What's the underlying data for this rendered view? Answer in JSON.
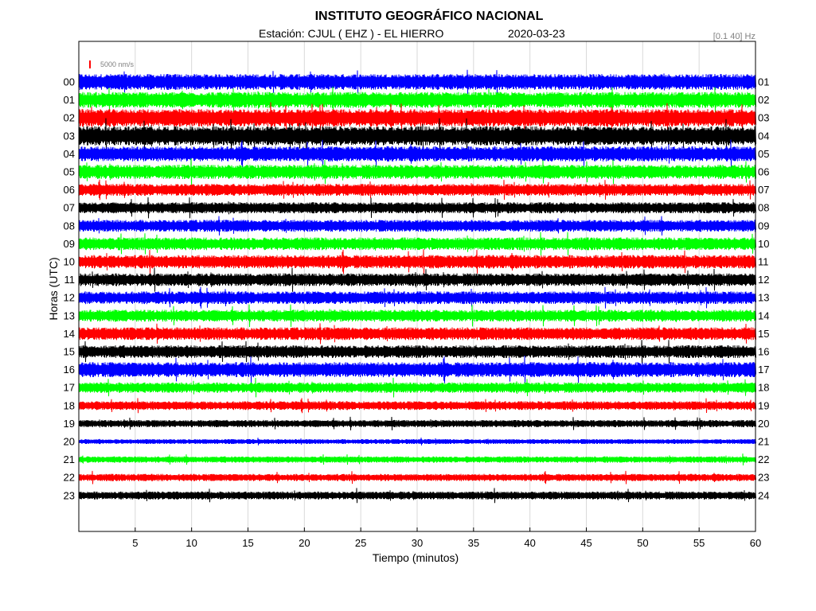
{
  "header": {
    "title": "INSTITUTO GEOGRÁFICO NACIONAL",
    "station": "Estación:  CJUL ( EHZ ) - EL HIERRO",
    "date": "2020-03-23",
    "filter": "[0.1 40] Hz"
  },
  "chart_data": {
    "type": "line",
    "title": "INSTITUTO GEOGRÁFICO NACIONAL",
    "xlabel": "Tiempo (minutos)",
    "ylabel": "Horas (UTC)",
    "xlim": [
      0,
      60
    ],
    "x_ticks": [
      5,
      10,
      15,
      20,
      25,
      30,
      35,
      40,
      45,
      50,
      55,
      60
    ],
    "grid": true,
    "scale_label": "5000 nm/s",
    "scale_color": "#ff0000",
    "colors": [
      "#0000ff",
      "#00ff00",
      "#ff0000",
      "#000000"
    ],
    "left_labels": [
      "00",
      "01",
      "02",
      "03",
      "04",
      "05",
      "06",
      "07",
      "08",
      "09",
      "10",
      "11",
      "12",
      "13",
      "14",
      "15",
      "16",
      "17",
      "18",
      "19",
      "20",
      "21",
      "22",
      "23"
    ],
    "right_labels": [
      "01",
      "02",
      "03",
      "04",
      "05",
      "06",
      "07",
      "08",
      "09",
      "10",
      "11",
      "12",
      "13",
      "14",
      "15",
      "16",
      "17",
      "18",
      "19",
      "20",
      "21",
      "22",
      "23",
      "24"
    ],
    "relative_amplitude": [
      1.0,
      1.0,
      1.1,
      1.2,
      0.95,
      0.9,
      0.75,
      0.7,
      0.75,
      0.8,
      0.85,
      0.8,
      0.8,
      0.75,
      0.8,
      0.8,
      0.95,
      0.65,
      0.55,
      0.45,
      0.3,
      0.4,
      0.45,
      0.5
    ]
  }
}
